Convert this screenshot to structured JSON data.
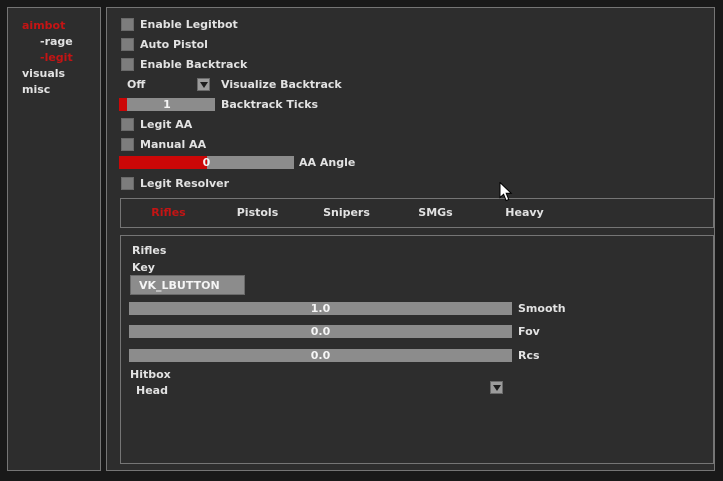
{
  "colors": {
    "accent_red": "#c41414",
    "slider_fill_red": "#cc0707",
    "panel_bg": "#2d2d2d",
    "track_gray": "#8c8c8c"
  },
  "sidebar": {
    "items": [
      {
        "label": "aimbot"
      },
      {
        "label": "-rage"
      },
      {
        "label": "-legit"
      },
      {
        "label": "visuals"
      },
      {
        "label": "misc"
      }
    ]
  },
  "main": {
    "enable_legitbot": {
      "label": "Enable Legitbot",
      "checked": false
    },
    "auto_pistol": {
      "label": "Auto Pistol",
      "checked": false
    },
    "enable_backtrack": {
      "label": "Enable Backtrack",
      "checked": false
    },
    "visualize_backtrack": {
      "label": "Visualize Backtrack",
      "value": "Off"
    },
    "backtrack_ticks": {
      "label": "Backtrack Ticks",
      "value": "1",
      "fill_pct": 8
    },
    "legit_aa": {
      "label": "Legit AA",
      "checked": false
    },
    "manual_aa": {
      "label": "Manual AA",
      "checked": false
    },
    "aa_angle": {
      "label": "AA Angle",
      "value": "0",
      "fill_pct": 50
    },
    "legit_resolver": {
      "label": "Legit Resolver",
      "checked": false
    },
    "tabs": [
      {
        "label": "Rifles",
        "active": true
      },
      {
        "label": "Pistols",
        "active": false
      },
      {
        "label": "Snipers",
        "active": false
      },
      {
        "label": "SMGs",
        "active": false
      },
      {
        "label": "Heavy",
        "active": false
      }
    ],
    "weapon": {
      "title": "Rifles",
      "key_label": "Key",
      "key_value": "VK_LBUTTON",
      "smooth": {
        "label": "Smooth",
        "value": "1.0",
        "fill_pct": 0
      },
      "fov": {
        "label": "Fov",
        "value": "0.0",
        "fill_pct": 0
      },
      "rcs": {
        "label": "Rcs",
        "value": "0.0",
        "fill_pct": 0
      },
      "hitbox_label": "Hitbox",
      "hitbox_value": "Head"
    }
  }
}
